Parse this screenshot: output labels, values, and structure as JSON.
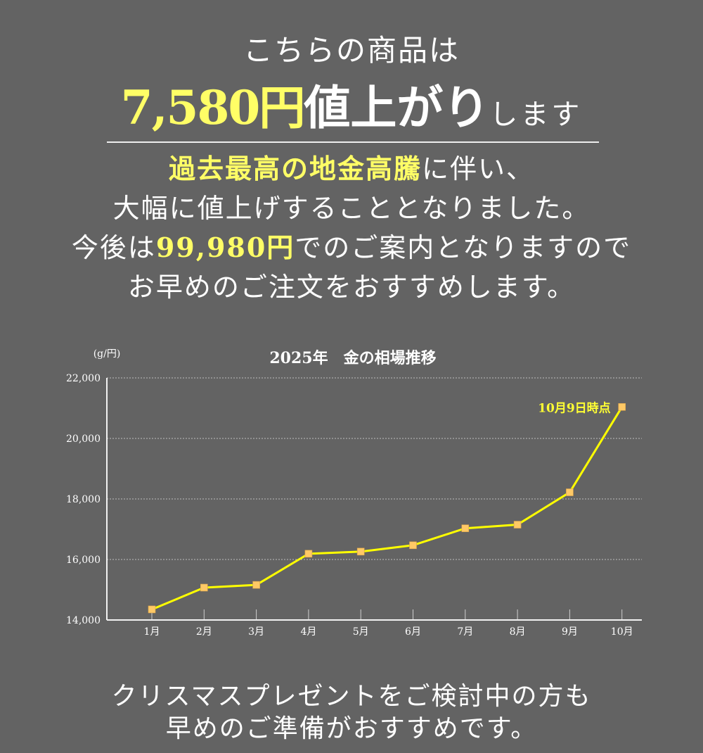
{
  "headline": {
    "line1": "こちらの商品は",
    "price_increase": "7,580円",
    "increase_text": "値上がり",
    "suffix": "します"
  },
  "message": {
    "line1_highlight": "過去最高の地金高騰",
    "line1_rest": "に伴い、",
    "line2": "大幅に値上げすることとなりました。",
    "line3_prefix": "今後は",
    "line3_price": "99,980円",
    "line3_rest": "でのご案内となりますので",
    "line4": "お早めのご注文をおすすめします。"
  },
  "footer": {
    "line1": "クリスマスプレゼントをご検討中の方も",
    "line2": "早めのご準備がおすすめです。"
  },
  "colors": {
    "background": "#636363",
    "highlight": "#fffe66",
    "line": "#ffff00",
    "marker": "#ffc966",
    "text": "#ffffff"
  },
  "chart_data": {
    "type": "line",
    "title": "2025年　金の相場推移",
    "ylabel": "(g/円)",
    "xlabel": "",
    "categories": [
      "1月",
      "2月",
      "3月",
      "4月",
      "5月",
      "6月",
      "7月",
      "8月",
      "9月",
      "10月"
    ],
    "series": [
      {
        "name": "金の相場",
        "values": [
          14350,
          15070,
          15160,
          16190,
          16260,
          16470,
          17030,
          17150,
          18220,
          21040
        ]
      }
    ],
    "ylim": [
      14000,
      22000
    ],
    "yticks": [
      14000,
      16000,
      18000,
      20000,
      22000
    ],
    "ytick_labels": [
      "14,000",
      "16,000",
      "18,000",
      "20,000",
      "22,000"
    ],
    "grid": "horizontal dotted",
    "annotation": {
      "text": "10月9日時点",
      "at": "10月"
    }
  }
}
